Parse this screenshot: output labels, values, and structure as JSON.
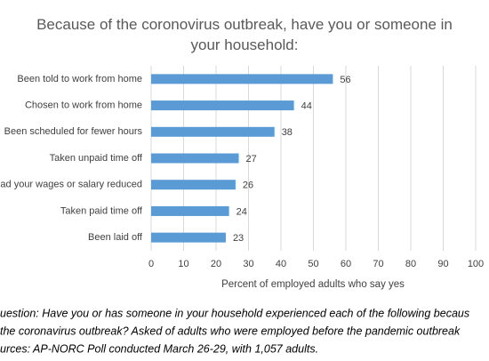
{
  "chart_data": {
    "type": "barh",
    "title": "Because of the coronovirus outbreak, have you or someone in your household:",
    "categories": [
      "Been told to work from home",
      "Chosen to work from home",
      "Been scheduled for fewer hours",
      "Taken unpaid time off",
      "ad your wages or salary reduced",
      "Taken paid time off",
      "Been laid off"
    ],
    "values": [
      56,
      44,
      38,
      27,
      26,
      24,
      23
    ],
    "color": "#5b9bd5",
    "xlim": [
      0,
      100
    ],
    "xticks": [
      0,
      10,
      20,
      30,
      40,
      50,
      60,
      70,
      80,
      90,
      100
    ],
    "grid": true,
    "x_label": "Percent of employed adults who say yes",
    "notes": [
      "uestion: Have you or has someone in your household experienced each of the following becaus",
      "the coronavirus outbreak? Asked of adults who were employed before the pandemic outbreak",
      "urces: AP-NORC Poll conducted March 26-29, with 1,057 adults."
    ]
  }
}
